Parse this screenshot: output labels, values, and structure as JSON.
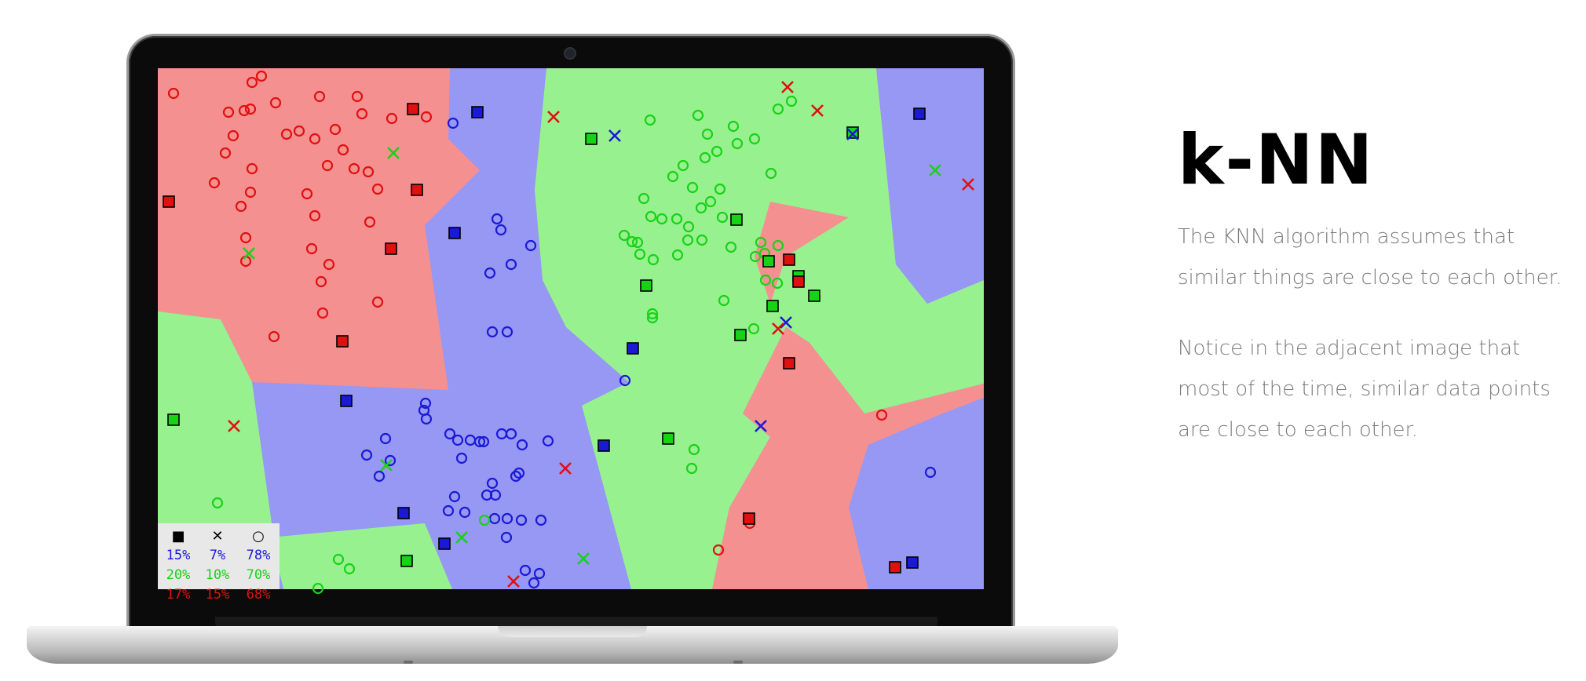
{
  "title": "k-NN",
  "paragraphs": [
    "The KNN algorithm assumes that similar things are close to each other.",
    "Notice in the adjacent image that most of the time, similar data points are close to each other."
  ],
  "colors": {
    "red_region": "#f59090",
    "blue_region": "#9797f4",
    "green_region": "#98f18f",
    "red_mark": "#e01010",
    "blue_mark": "#1a1ad6",
    "green_mark": "#18d218"
  },
  "legend": {
    "symbols": [
      "■",
      "✕",
      "○"
    ],
    "rows": [
      {
        "color": "blue",
        "values": [
          "15%",
          "7%",
          "78%"
        ]
      },
      {
        "color": "green",
        "values": [
          "20%",
          "10%",
          "70%"
        ]
      },
      {
        "color": "red",
        "values": [
          "17%",
          "15%",
          "68%"
        ]
      }
    ]
  }
}
